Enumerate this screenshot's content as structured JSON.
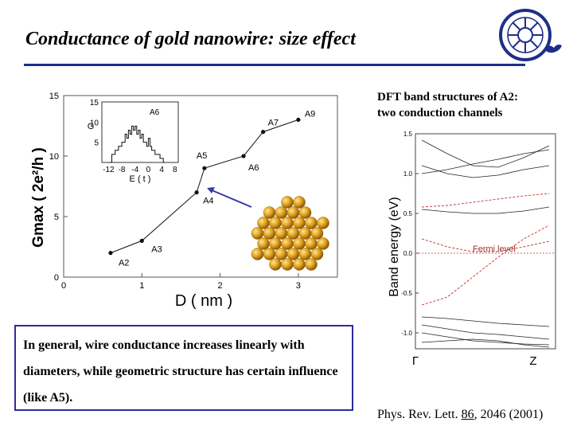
{
  "slide": {
    "title": "Conductance of gold nanowire: size effect",
    "band_caption_line1": "DFT band structures of A2:",
    "band_caption_line2": "two conduction channels",
    "note_text": "In general, wire conductance increases linearly with diameters, while geometric structure has certain influence (like A5).",
    "reference_prefix": "Phys. Rev. Lett. ",
    "reference_volume": "86",
    "reference_suffix": ", 2046 (2001)",
    "accent_color": "#1f2f88"
  },
  "chart_data": [
    {
      "type": "line",
      "title": "",
      "xlabel": "D ( nm )",
      "ylabel": "Gmax ( 2e²/h )",
      "xlim": [
        0,
        3.5
      ],
      "ylim": [
        0,
        15
      ],
      "x_ticks": [
        "0",
        "1",
        "2",
        "3"
      ],
      "y_ticks": [
        "0",
        "5",
        "10",
        "15"
      ],
      "series": [
        {
          "points": [
            {
              "label": "A2",
              "x": 0.6,
              "y": 2.0
            },
            {
              "label": "A3",
              "x": 1.0,
              "y": 3.0
            },
            {
              "label": "A4",
              "x": 1.7,
              "y": 7.0
            },
            {
              "label": "A5",
              "x": 1.8,
              "y": 9.0
            },
            {
              "label": "A6",
              "x": 2.3,
              "y": 10.0
            },
            {
              "label": "A7",
              "x": 2.55,
              "y": 12.0
            },
            {
              "label": "A9",
              "x": 3.0,
              "y": 13.0
            }
          ]
        }
      ],
      "inset": {
        "type": "line",
        "xlabel": "E ( t )",
        "ylabel": "G",
        "xlim": [
          -14,
          9
        ],
        "ylim": [
          0,
          15
        ],
        "x_ticks": [
          "-12",
          "-8",
          "-4",
          "0",
          "4",
          "8"
        ],
        "y_ticks": [
          "5",
          "10",
          "15"
        ],
        "annotation": "A6",
        "x": [
          -12,
          -11,
          -10,
          -9,
          -8,
          -7,
          -6.5,
          -6,
          -5.5,
          -5,
          -4.5,
          -4,
          -3.5,
          -3,
          -2.5,
          -2,
          -1.5,
          -1,
          -0.5,
          0,
          0.5,
          1,
          1.5,
          2,
          2.5,
          3,
          3.5,
          4,
          4.5,
          5
        ],
        "y": [
          0,
          2,
          3,
          4,
          5,
          7,
          6,
          8,
          7,
          9,
          8,
          9,
          7,
          8,
          6,
          7,
          5,
          5,
          4,
          6,
          4,
          3,
          3,
          2,
          2,
          2,
          1,
          1,
          0,
          0
        ]
      }
    },
    {
      "type": "line",
      "title": "",
      "xlabel": "",
      "ylabel": "Band energy (eV)",
      "ylim": [
        -1.2,
        1.5
      ],
      "x_ticks": [
        "Γ",
        "Z"
      ],
      "y_ticks": [
        "1.5",
        "1.0",
        "0.5",
        "0.0",
        "-0.5",
        "-1.0"
      ],
      "fermi_level": 0.0,
      "fermi_label": "Fermi level",
      "series": [
        {
          "x": [
            0,
            0.2,
            0.4,
            0.6,
            0.8,
            1.0
          ],
          "y": [
            0.18,
            0.08,
            0.02,
            0.02,
            0.08,
            0.15
          ]
        },
        {
          "x": [
            0,
            0.2,
            0.4,
            0.6,
            0.8,
            1.0
          ],
          "y": [
            -0.65,
            -0.55,
            -0.3,
            -0.05,
            0.18,
            0.35
          ]
        },
        {
          "x": [
            0,
            0.2,
            0.4,
            0.6,
            0.8,
            1.0
          ],
          "y": [
            0.55,
            0.52,
            0.5,
            0.5,
            0.53,
            0.58
          ]
        },
        {
          "x": [
            0,
            0.2,
            0.4,
            0.6,
            0.8,
            1.0
          ],
          "y": [
            0.58,
            0.6,
            0.64,
            0.68,
            0.72,
            0.75
          ]
        },
        {
          "x": [
            0,
            0.2,
            0.4,
            0.6,
            0.8,
            1.0
          ],
          "y": [
            1.42,
            1.25,
            1.1,
            1.08,
            1.2,
            1.35
          ]
        },
        {
          "x": [
            0,
            0.2,
            0.4,
            0.6,
            0.8,
            1.0
          ],
          "y": [
            1.0,
            1.05,
            1.12,
            1.18,
            1.25,
            1.3
          ]
        },
        {
          "x": [
            0,
            0.2,
            0.4,
            0.6,
            0.8,
            1.0
          ],
          "y": [
            1.1,
            1.0,
            0.95,
            0.98,
            1.05,
            1.1
          ]
        },
        {
          "x": [
            0,
            0.2,
            0.4,
            0.6,
            0.8,
            1.0
          ],
          "y": [
            -0.8,
            -0.82,
            -0.85,
            -0.88,
            -0.9,
            -0.92
          ]
        },
        {
          "x": [
            0,
            0.2,
            0.4,
            0.6,
            0.8,
            1.0
          ],
          "y": [
            -0.9,
            -0.95,
            -1.0,
            -1.02,
            -1.05,
            -1.08
          ]
        },
        {
          "x": [
            0,
            0.2,
            0.4,
            0.6,
            0.8,
            1.0
          ],
          "y": [
            -1.0,
            -1.05,
            -1.1,
            -1.12,
            -1.14,
            -1.15
          ]
        },
        {
          "x": [
            0,
            0.2,
            0.4,
            0.6,
            0.8,
            1.0
          ],
          "y": [
            -1.12,
            -1.1,
            -1.08,
            -1.1,
            -1.15,
            -1.18
          ]
        }
      ]
    }
  ]
}
